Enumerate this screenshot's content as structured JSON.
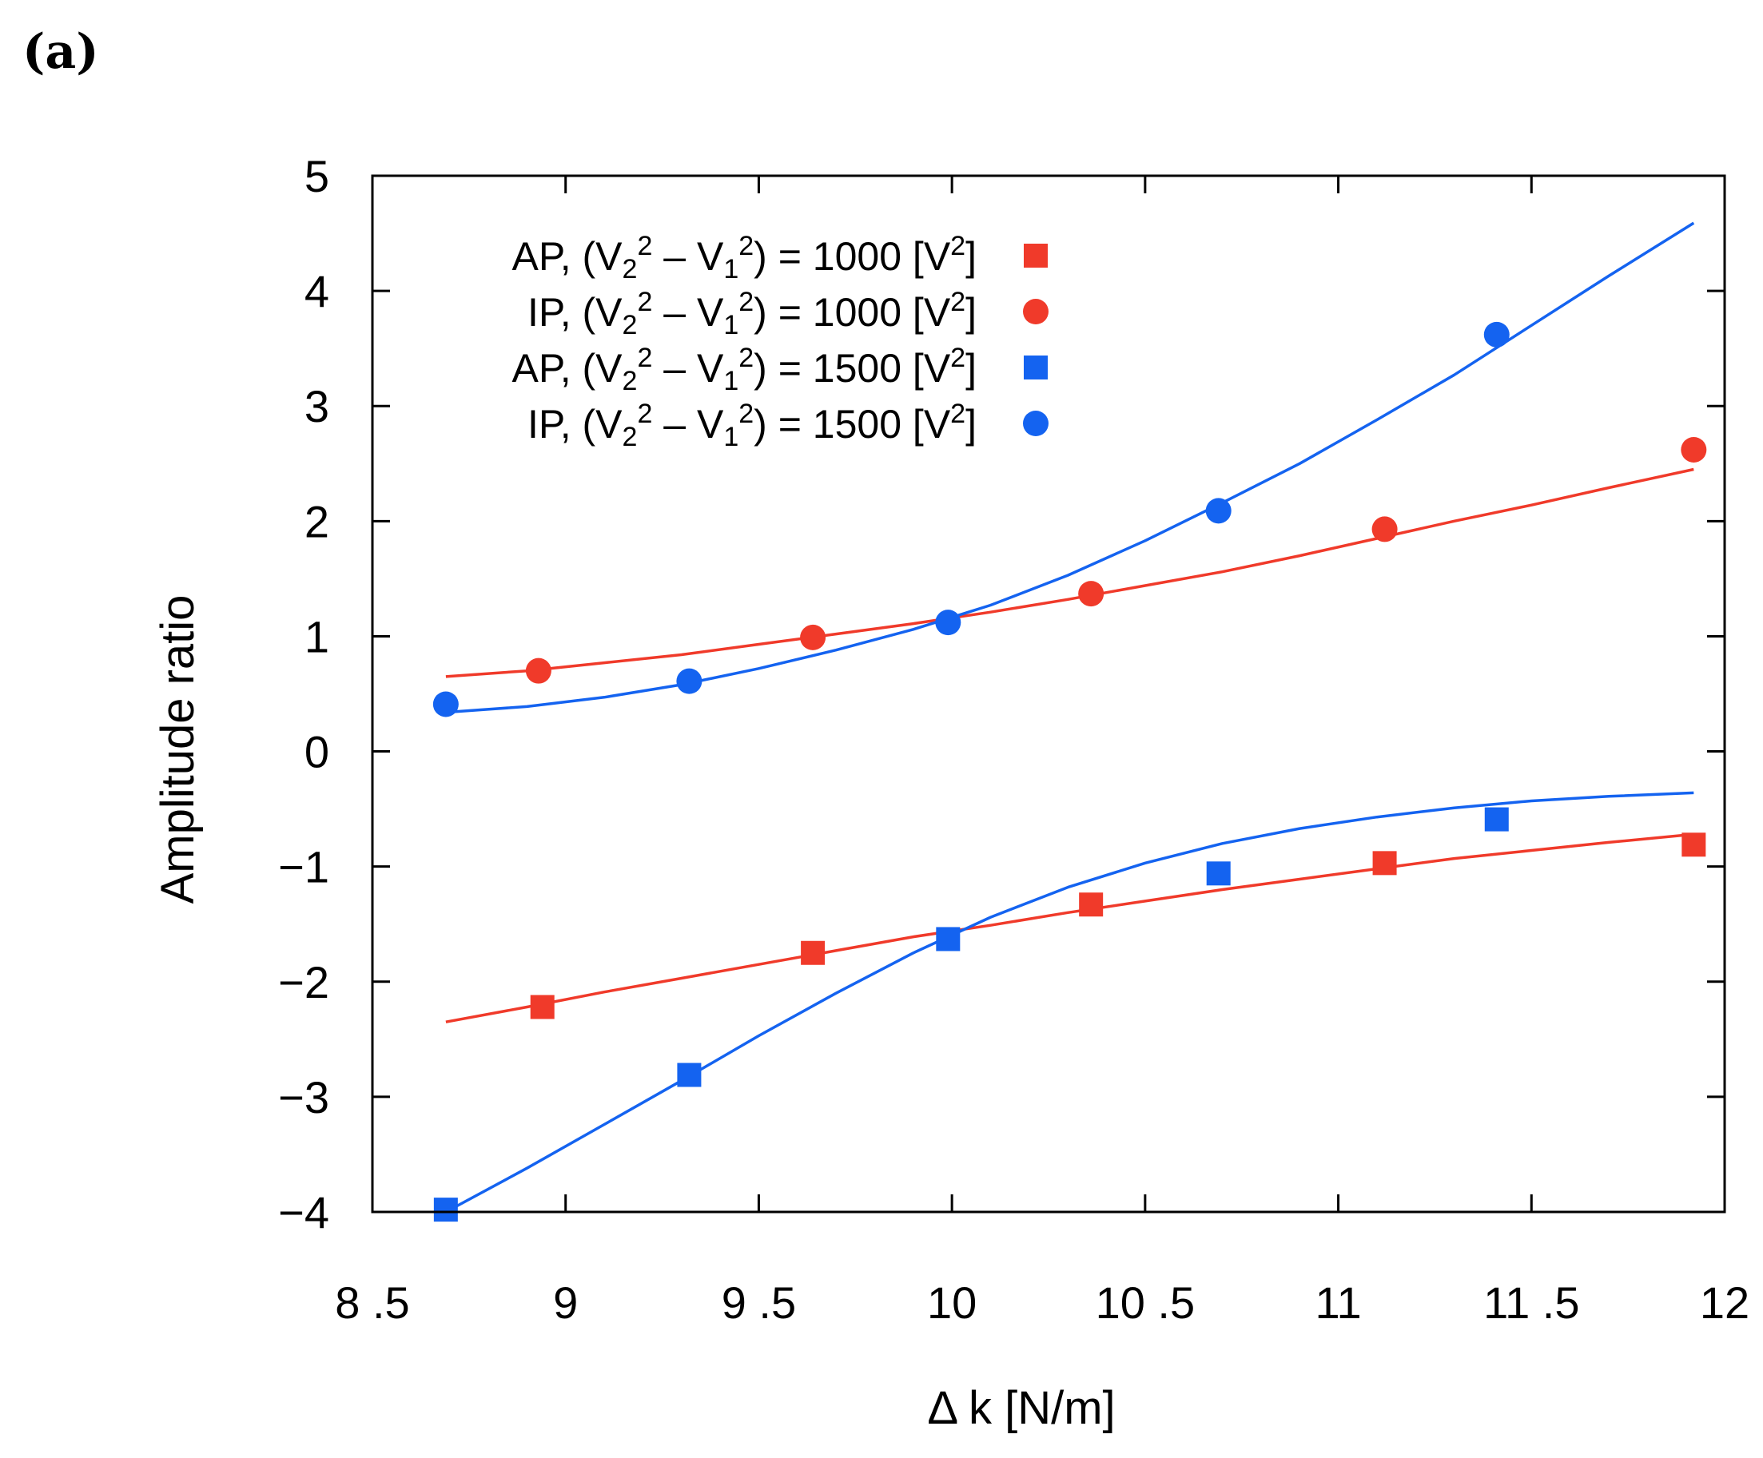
{
  "panel_label": "(a)",
  "chart_data": {
    "type": "scatter",
    "title": "",
    "xlabel": "Δ k [N/m]",
    "ylabel": "Amplitude ratio",
    "xlim": [
      8.5,
      12
    ],
    "ylim": [
      -4,
      5
    ],
    "grid": false,
    "legend_position": "top-left",
    "x_ticks": [
      8.5,
      9,
      9.5,
      10,
      10.5,
      11,
      11.5,
      12
    ],
    "x_tick_labels": [
      "8 .5",
      "9",
      "9 .5",
      "10",
      "10 .5",
      "11",
      "11 .5",
      "12"
    ],
    "y_ticks": [
      -4,
      -3,
      -2,
      -1,
      0,
      1,
      2,
      3,
      4,
      5
    ],
    "y_tick_labels": [
      "−4",
      "−3",
      "−2",
      "−1",
      "0",
      "1",
      "2",
      "3",
      "4",
      "5"
    ],
    "series": [
      {
        "name": "AP, (V2² – V1²) = 1000 [V²]",
        "label_prefix": "AP, (V",
        "voltage": "1000",
        "color": "#f03a2a",
        "marker": "square",
        "x": [
          8.94,
          9.64,
          10.36,
          11.12,
          11.92
        ],
        "y": [
          -2.22,
          -1.75,
          -1.33,
          -0.97,
          -0.81
        ],
        "fit_x": [
          8.69,
          8.9,
          9.1,
          9.3,
          9.5,
          9.7,
          9.9,
          10.1,
          10.3,
          10.5,
          10.7,
          10.9,
          11.1,
          11.3,
          11.5,
          11.7,
          11.92
        ],
        "fit_y": [
          -2.35,
          -2.22,
          -2.09,
          -1.97,
          -1.85,
          -1.73,
          -1.61,
          -1.51,
          -1.4,
          -1.3,
          -1.2,
          -1.11,
          -1.02,
          -0.93,
          -0.86,
          -0.79,
          -0.72
        ]
      },
      {
        "name": "IP, (V2² – V1²) = 1000 [V²]",
        "label_prefix": "IP, (V",
        "voltage": "1000",
        "color": "#f03a2a",
        "marker": "circle",
        "x": [
          8.93,
          9.64,
          10.36,
          11.12,
          11.92
        ],
        "y": [
          0.7,
          0.99,
          1.37,
          1.93,
          2.62
        ],
        "fit_x": [
          8.69,
          8.9,
          9.1,
          9.3,
          9.5,
          9.7,
          9.9,
          10.1,
          10.3,
          10.5,
          10.7,
          10.9,
          11.1,
          11.3,
          11.5,
          11.7,
          11.92
        ],
        "fit_y": [
          0.65,
          0.7,
          0.77,
          0.84,
          0.93,
          1.02,
          1.11,
          1.21,
          1.32,
          1.44,
          1.56,
          1.7,
          1.85,
          2.0,
          2.14,
          2.29,
          2.45
        ]
      },
      {
        "name": "AP, (V2² – V1²) = 1500 [V²]",
        "label_prefix": "AP, (V",
        "voltage": "1500",
        "color": "#1463f0",
        "marker": "square",
        "x": [
          8.69,
          9.32,
          9.99,
          10.69,
          11.41
        ],
        "y": [
          -3.98,
          -2.81,
          -1.63,
          -1.06,
          -0.59
        ],
        "fit_x": [
          8.69,
          8.9,
          9.1,
          9.3,
          9.5,
          9.7,
          9.9,
          10.1,
          10.3,
          10.5,
          10.7,
          10.9,
          11.1,
          11.3,
          11.5,
          11.7,
          11.92
        ],
        "fit_y": [
          -4.0,
          -3.62,
          -3.24,
          -2.86,
          -2.47,
          -2.1,
          -1.75,
          -1.44,
          -1.18,
          -0.97,
          -0.8,
          -0.67,
          -0.57,
          -0.49,
          -0.43,
          -0.39,
          -0.36
        ]
      },
      {
        "name": "IP, (V2² – V1²) = 1500 [V²]",
        "label_prefix": "IP, (V",
        "voltage": "1500",
        "color": "#1463f0",
        "marker": "circle",
        "x": [
          8.69,
          9.32,
          9.99,
          10.69,
          11.41
        ],
        "y": [
          0.41,
          0.61,
          1.12,
          2.09,
          3.62
        ],
        "fit_x": [
          8.69,
          8.9,
          9.1,
          9.3,
          9.5,
          9.7,
          9.9,
          10.1,
          10.3,
          10.5,
          10.7,
          10.9,
          11.1,
          11.3,
          11.5,
          11.7,
          11.92
        ],
        "fit_y": [
          0.34,
          0.39,
          0.47,
          0.58,
          0.72,
          0.88,
          1.06,
          1.27,
          1.53,
          1.83,
          2.16,
          2.5,
          2.88,
          3.27,
          3.7,
          4.13,
          4.59
        ]
      }
    ]
  }
}
